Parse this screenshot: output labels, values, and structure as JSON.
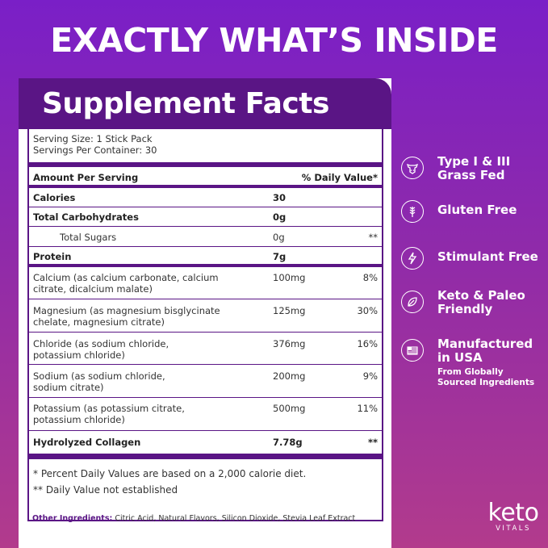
{
  "headline": "EXACTLY WHAT’S INSIDE",
  "panel_title": "Supplement Facts",
  "serving_size": "Serving Size: 1 Stick Pack",
  "servings_per_container": "Servings Per Container: 30",
  "header_amount": "Amount Per Serving",
  "header_dv": "% Daily Value*",
  "rows": [
    {
      "name": "Calories",
      "amount": "30",
      "dv": ""
    },
    {
      "name": "Total Carbohydrates",
      "amount": "0g",
      "dv": ""
    },
    {
      "name": "Total Sugars",
      "amount": "0g",
      "dv": "**"
    },
    {
      "name": "Protein",
      "amount": "7g",
      "dv": ""
    },
    {
      "name_l1": "Calcium (as calcium carbonate, calcium",
      "name_l2": "citrate, dicalcium malate)",
      "amount": "100mg",
      "dv": "8%"
    },
    {
      "name_l1": "Magnesium (as magnesium bisglycinate",
      "name_l2": "chelate, magnesium citrate)",
      "amount": "125mg",
      "dv": "30%"
    },
    {
      "name_l1": "Chloride (as sodium chloride,",
      "name_l2": "potassium chloride)",
      "amount": "376mg",
      "dv": "16%"
    },
    {
      "name_l1": "Sodium (as sodium chloride,",
      "name_l2": "sodium citrate)",
      "amount": "200mg",
      "dv": "9%"
    },
    {
      "name_l1": "Potassium (as potassium citrate,",
      "name_l2": "potassium chloride)",
      "amount": "500mg",
      "dv": "11%"
    },
    {
      "name": "Hydrolyzed Collagen",
      "amount": "7.78g",
      "dv": "**"
    }
  ],
  "footnote_1": "* Percent Daily Values are based on a 2,000 calorie diet.",
  "footnote_2": "** Daily Value not established",
  "other_label": "Other Ingredients:",
  "other_text": " Citric Acid, Natural Flavors, Silicon Dioxide, Stevia Leaf Extract",
  "features": [
    {
      "icon": "cow-icon",
      "l1": "Type I & III",
      "l2": "Grass Fed"
    },
    {
      "icon": "wheat-icon",
      "l1": "Gluten Free",
      "l2": ""
    },
    {
      "icon": "lightning-icon",
      "l1": "Stimulant Free",
      "l2": ""
    },
    {
      "icon": "leaf-icon",
      "l1": "Keto & Paleo",
      "l2": "Friendly"
    },
    {
      "icon": "usa-flag-icon",
      "l1": "Manufactured",
      "l2": "in USA",
      "sub1": "From Globally",
      "sub2": "Sourced Ingredients"
    }
  ],
  "logo_brand": "keto",
  "logo_tag": "VITALS",
  "colors": {
    "panel_purple": "#5a1585",
    "bg_top": "#7a1fc7",
    "bg_bottom": "#b23b8c"
  }
}
